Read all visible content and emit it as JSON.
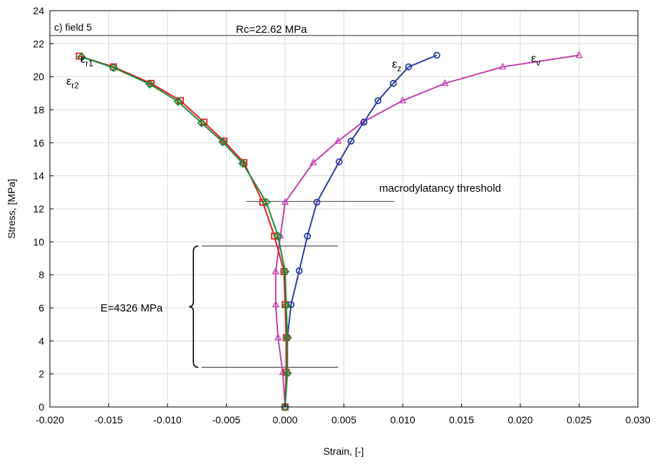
{
  "chart_data": {
    "type": "line",
    "xlabel": "Strain, [-]",
    "ylabel": "Stress, [MPa]",
    "xlim": [
      -0.02,
      0.03
    ],
    "ylim": [
      0,
      24
    ],
    "x_ticks": [
      -0.02,
      -0.015,
      -0.01,
      -0.005,
      0.0,
      0.005,
      0.01,
      0.015,
      0.02,
      0.025,
      0.03
    ],
    "x_tick_labels": [
      "-0.020",
      "-0.015",
      "-0.010",
      "-0.005",
      "0.000",
      "0.005",
      "0.010",
      "0.015",
      "0.020",
      "0.025",
      "0.030"
    ],
    "y_ticks": [
      0,
      2,
      4,
      6,
      8,
      10,
      12,
      14,
      16,
      18,
      20,
      22,
      24
    ],
    "y_tick_labels": [
      "0",
      "2",
      "4",
      "6",
      "8",
      "10",
      "12",
      "14",
      "16",
      "18",
      "20",
      "22",
      "24"
    ],
    "grid": true,
    "series": [
      {
        "name": "εr1",
        "color": "#e02020",
        "marker": "square",
        "points": [
          [
            0.0,
            0.0
          ],
          [
            0.0001,
            2.1
          ],
          [
            0.0001,
            4.2
          ],
          [
            0.0,
            6.2
          ],
          [
            -0.0001,
            8.2
          ],
          [
            -0.0009,
            10.35
          ],
          [
            -0.0019,
            12.4
          ],
          [
            -0.0035,
            14.8
          ],
          [
            -0.0052,
            16.1
          ],
          [
            -0.0069,
            17.25
          ],
          [
            -0.0089,
            18.55
          ],
          [
            -0.0114,
            19.6
          ],
          [
            -0.0146,
            20.6
          ],
          [
            -0.0175,
            21.25
          ]
        ]
      },
      {
        "name": "εr2",
        "color": "#1e8a3c",
        "marker": "diamond",
        "points": [
          [
            0.0,
            0.0
          ],
          [
            0.0002,
            2.05
          ],
          [
            0.0002,
            4.2
          ],
          [
            0.0001,
            6.15
          ],
          [
            0.0,
            8.2
          ],
          [
            -0.0006,
            10.35
          ],
          [
            -0.0016,
            12.4
          ],
          [
            -0.0036,
            14.75
          ],
          [
            -0.0053,
            16.05
          ],
          [
            -0.0071,
            17.2
          ],
          [
            -0.0091,
            18.5
          ],
          [
            -0.0115,
            19.55
          ],
          [
            -0.0146,
            20.55
          ],
          [
            -0.0173,
            21.2
          ]
        ]
      },
      {
        "name": "εz",
        "color": "#2c3fa0",
        "marker": "circle",
        "points": [
          [
            0.0,
            0.0
          ],
          [
            0.0002,
            4.2
          ],
          [
            0.0005,
            6.2
          ],
          [
            0.0012,
            8.25
          ],
          [
            0.0019,
            10.35
          ],
          [
            0.0027,
            12.4
          ],
          [
            0.0046,
            14.85
          ],
          [
            0.0056,
            16.1
          ],
          [
            0.0067,
            17.25
          ],
          [
            0.0079,
            18.55
          ],
          [
            0.0092,
            19.6
          ],
          [
            0.0105,
            20.6
          ],
          [
            0.0129,
            21.3
          ]
        ]
      },
      {
        "name": "εv",
        "color": "#c040b0",
        "marker": "triangle",
        "points": [
          [
            0.0,
            0.0
          ],
          [
            -0.0002,
            2.1
          ],
          [
            -0.0006,
            4.2
          ],
          [
            -0.0008,
            6.2
          ],
          [
            -0.0008,
            8.2
          ],
          [
            -0.0004,
            10.35
          ],
          [
            0.0,
            12.4
          ],
          [
            0.0024,
            14.8
          ],
          [
            0.0045,
            16.1
          ],
          [
            0.0066,
            17.25
          ],
          [
            0.01,
            18.55
          ],
          [
            0.0136,
            19.6
          ],
          [
            0.0185,
            20.6
          ],
          [
            0.025,
            21.3
          ]
        ]
      }
    ],
    "reference_lines": [
      {
        "label": "Rc=22.62 MPa",
        "y": 22.5,
        "x_from": -0.02,
        "x_to": 0.03
      },
      {
        "label": "macrodylatancy threshold",
        "y": 12.45,
        "x_from": -0.0033,
        "x_to": 0.0093
      },
      {
        "label": "",
        "y": 9.75,
        "x_from": -0.0071,
        "x_to": 0.0045
      },
      {
        "label": "",
        "y": 2.4,
        "x_from": -0.0071,
        "x_to": 0.0045
      }
    ],
    "brace": {
      "label": "E=4326 MPa",
      "y_from": 2.4,
      "y_to": 9.75,
      "x": -0.0078
    }
  },
  "annotations": {
    "panel_label": "c) field 5",
    "rc_label": "Rc=22.62 MPa",
    "macro_label": "macrodylatancy threshold",
    "e_label": "E=4326 MPa"
  },
  "series_labels": {
    "r1_main": "ε",
    "r1_sub": "r1",
    "r2_main": "ε",
    "r2_sub": "r2",
    "z_main": "ε",
    "z_sub": "z",
    "v_main": "ε",
    "v_sub": "v"
  }
}
